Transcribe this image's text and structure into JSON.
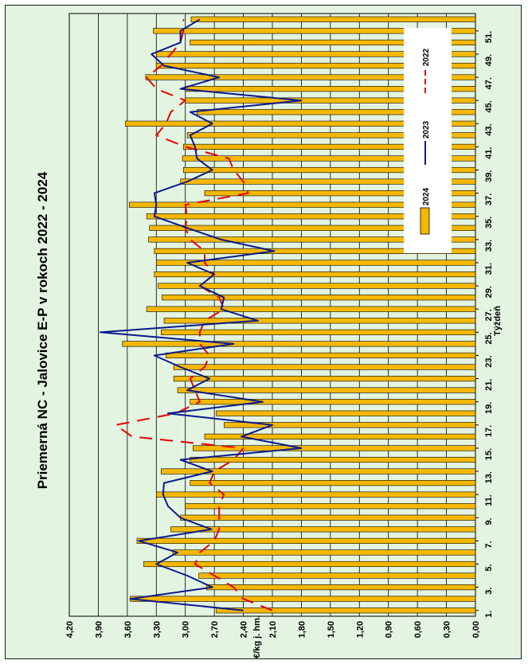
{
  "chart_data": {
    "type": "bar+line",
    "title": "Priemerná NC - Jalovice E-P v rokoch 2022 - 2024",
    "xlabel": "Týždeň",
    "ylabel": "€/kg j. hm.",
    "ylim": [
      0,
      4.2
    ],
    "yticks": [
      "0,00",
      "0,30",
      "0,60",
      "0,90",
      "1,20",
      "1,50",
      "1,80",
      "2,10",
      "2,40",
      "2,70",
      "3,00",
      "3,30",
      "3,60",
      "3,90",
      "4,20"
    ],
    "xtick_labels": [
      "1.",
      "3.",
      "5.",
      "7.",
      "9.",
      "11.",
      "13.",
      "15.",
      "17.",
      "19.",
      "21.",
      "23.",
      "25.",
      "27.",
      "29.",
      "31.",
      "33.",
      "35.",
      "37.",
      "39.",
      "41.",
      "43.",
      "45.",
      "47.",
      "49.",
      "51."
    ],
    "grid": true,
    "legend_position": "top-right",
    "x": [
      1,
      2,
      3,
      4,
      5,
      6,
      7,
      8,
      9,
      10,
      11,
      12,
      13,
      14,
      15,
      16,
      17,
      18,
      19,
      20,
      21,
      22,
      23,
      24,
      25,
      26,
      27,
      28,
      29,
      30,
      31,
      32,
      33,
      34,
      35,
      36,
      37,
      38,
      39,
      40,
      41,
      42,
      43,
      44,
      45,
      46,
      47,
      48,
      49,
      50,
      51,
      52
    ],
    "series": [
      {
        "name": "2024",
        "kind": "bar",
        "color": "#f5b800",
        "values": [
          2.68,
          3.57,
          2.78,
          2.86,
          3.43,
          3.13,
          3.5,
          3.15,
          3.05,
          3.0,
          3.3,
          2.95,
          3.25,
          2.95,
          2.92,
          2.8,
          2.6,
          2.68,
          2.95,
          3.08,
          3.12,
          3.12,
          3.2,
          3.65,
          3.25,
          3.22,
          3.4,
          3.24,
          3.28,
          3.32,
          3.3,
          3.32,
          3.38,
          3.37,
          3.4,
          3.58,
          2.8,
          3.05,
          3.02,
          3.03,
          3.02,
          2.98,
          3.62,
          2.88,
          3.0,
          3.0,
          3.41,
          3.3,
          3.3,
          2.95,
          3.33,
          2.94
        ]
      },
      {
        "name": "2023",
        "kind": "line",
        "color": "#0a1a8c",
        "values": [
          2.4,
          3.57,
          2.72,
          2.98,
          3.3,
          3.08,
          3.48,
          2.73,
          3.05,
          3.18,
          3.23,
          3.22,
          2.72,
          3.05,
          1.8,
          2.42,
          2.1,
          3.18,
          2.2,
          2.98,
          2.75,
          3.05,
          3.32,
          2.5,
          3.88,
          2.25,
          2.63,
          2.6,
          2.85,
          2.7,
          2.98,
          2.08,
          2.63,
          2.98,
          3.32,
          3.3,
          3.32,
          2.98,
          2.72,
          2.88,
          2.9,
          2.95,
          2.72,
          2.95,
          1.8,
          3.05,
          2.65,
          3.22,
          3.35,
          3.05,
          3.05,
          2.85
        ]
      },
      {
        "name": "2022",
        "kind": "line",
        "color": "#e80000",
        "values": [
          2.1,
          2.4,
          2.5,
          2.7,
          2.9,
          2.85,
          2.7,
          2.65,
          2.65,
          2.65,
          2.6,
          2.75,
          2.7,
          2.5,
          2.4,
          3.55,
          3.72,
          3.1,
          2.85,
          2.9,
          2.95,
          2.8,
          2.75,
          2.85,
          2.85,
          2.8,
          2.6,
          2.65,
          2.85,
          2.7,
          2.8,
          2.8,
          2.95,
          3.0,
          2.98,
          3.0,
          2.35,
          2.4,
          2.5,
          2.55,
          3.0,
          3.3,
          3.2,
          3.15,
          3.0,
          3.3,
          3.4,
          3.25,
          3.15,
          3.05,
          3.02,
          3.02
        ]
      }
    ]
  }
}
